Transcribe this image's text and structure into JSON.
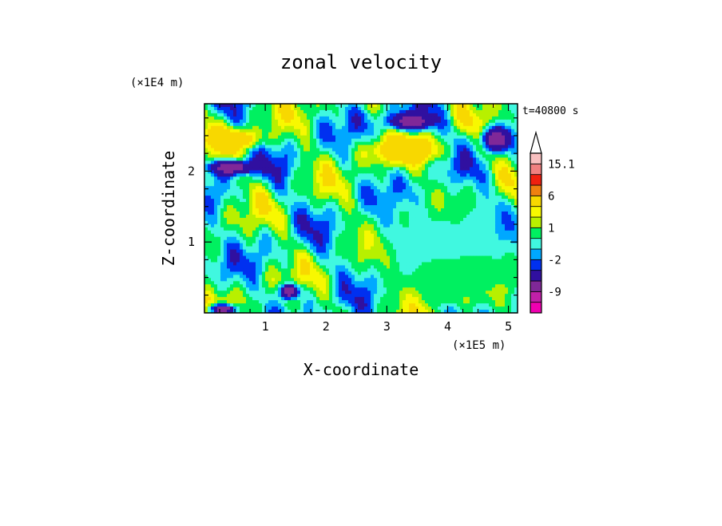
{
  "chart_data": {
    "type": "heatmap",
    "title": "zonal velocity",
    "xlabel": "X-coordinate",
    "ylabel": "Z-coordinate",
    "x_unit": "(×1E5 m)",
    "y_unit": "(×1E4 m)",
    "time_label": "t=40800 s",
    "x_ticks": [
      "1",
      "2",
      "3",
      "4",
      "5"
    ],
    "x_tick_values": [
      1,
      2,
      3,
      4,
      5
    ],
    "y_ticks": [
      "1",
      "2"
    ],
    "y_tick_values": [
      1,
      2
    ],
    "xlim": [
      0,
      5.15
    ],
    "ylim": [
      0,
      2.95
    ],
    "colorbar": {
      "labels": [
        "15.1",
        "6",
        "1",
        "-2",
        "-9"
      ],
      "label_values": [
        15.1,
        6,
        1,
        -2,
        -9
      ],
      "levels": [
        -15,
        -12,
        -9,
        -6,
        -3,
        -2,
        -1,
        0,
        1,
        2,
        3,
        6,
        9,
        12,
        15.1
      ],
      "colors": [
        "#f000b0",
        "#c020a8",
        "#802898",
        "#3010a0",
        "#0030f0",
        "#00a8ff",
        "#40f8e0",
        "#00f060",
        "#b8f000",
        "#f8f800",
        "#f8d800",
        "#f08010",
        "#f02010",
        "#f08080",
        "#f8c0c0"
      ],
      "extend_arrow_color": "#ffffff"
    },
    "contour_features": [
      {
        "x": 4.0,
        "y": 1.0,
        "value": -0.5,
        "rx": 1.3,
        "ry": 0.65
      },
      {
        "x": 4.3,
        "y": 0.45,
        "value": 1.5,
        "rx": 0.9,
        "ry": 0.3
      },
      {
        "x": 3.3,
        "y": 2.3,
        "value": 6,
        "rx": 0.55,
        "ry": 0.18
      },
      {
        "x": 3.4,
        "y": 2.7,
        "value": -9,
        "rx": 0.35,
        "ry": 0.12
      },
      {
        "x": 4.8,
        "y": 2.45,
        "value": -9,
        "rx": 0.22,
        "ry": 0.15
      },
      {
        "x": 0.45,
        "y": 2.45,
        "value": 6,
        "rx": 0.45,
        "ry": 0.14
      },
      {
        "x": 0.45,
        "y": 2.05,
        "value": -9,
        "rx": 0.35,
        "ry": 0.1
      },
      {
        "x": 1.4,
        "y": 0.3,
        "value": -9,
        "rx": 0.15,
        "ry": 0.1
      },
      {
        "x": 0.3,
        "y": 0.05,
        "value": -9,
        "rx": 0.2,
        "ry": 0.07
      }
    ]
  }
}
